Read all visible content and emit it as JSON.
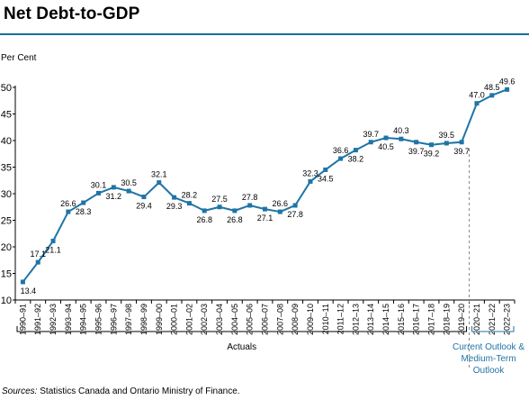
{
  "header": {
    "title": "Net Debt-to-GDP"
  },
  "colors": {
    "accent": "#1a6f9b",
    "line": "#1f74a6",
    "marker": "#1f74a6",
    "text": "#000000",
    "divider": "#888888",
    "outlook_text": "#1f74a6"
  },
  "footer": {
    "sources_label": "Sources:",
    "sources_text": " Statistics Canada and Ontario Ministry of Finance."
  },
  "chart_data": {
    "type": "line",
    "title": "Net Debt-to-GDP",
    "ylabel": "Per Cent",
    "xlabel": "",
    "ylim": [
      10,
      50
    ],
    "yticks": [
      10,
      15,
      20,
      25,
      30,
      35,
      40,
      45,
      50
    ],
    "grid": false,
    "categories": [
      "1990–91",
      "1991–92",
      "1992–93",
      "1993–94",
      "1994–95",
      "1995–96",
      "1996–97",
      "1997–98",
      "1998–99",
      "1999–00",
      "2000–01",
      "2001–02",
      "2002–03",
      "2003–04",
      "2004–05",
      "2005–06",
      "2006–07",
      "2007–08",
      "2008–09",
      "2009–10",
      "2010–11",
      "2011–12",
      "2012–13",
      "2013–14",
      "2014–15",
      "2015–16",
      "2016–17",
      "2017–18",
      "2018–19",
      "2019–20",
      "2020–21",
      "2021–22",
      "2022–23"
    ],
    "series": [
      {
        "values": [
          13.4,
          17.1,
          21.1,
          26.6,
          28.3,
          30.1,
          31.2,
          30.5,
          29.4,
          32.1,
          29.3,
          28.2,
          26.8,
          27.5,
          26.8,
          27.8,
          27.1,
          26.6,
          27.8,
          32.3,
          34.5,
          36.6,
          38.2,
          39.7,
          40.5,
          40.3,
          39.7,
          39.2,
          39.5,
          39.7,
          47.0,
          48.5,
          49.6
        ]
      }
    ],
    "data_labels": [
      "13.4",
      "17.1",
      "21.1",
      "26.6",
      "28.3",
      "30.1",
      "31.2",
      "30.5",
      "29.4",
      "32.1",
      "29.3",
      "28.2",
      "26.8",
      "27.5",
      "26.8",
      "27.8",
      "27.1",
      "26.6",
      "27.8",
      "32.3",
      "34.5",
      "36.6",
      "38.2",
      "39.7",
      "40.5",
      "40.3",
      "39.7",
      "39.2",
      "39.5",
      "39.7",
      "47.0",
      "48.5",
      "49.6"
    ],
    "label_positions": [
      "below",
      "above",
      "below",
      "above",
      "below",
      "above",
      "below",
      "above",
      "below",
      "above",
      "below",
      "above",
      "below",
      "above",
      "below",
      "above",
      "below",
      "above",
      "below",
      "above",
      "below",
      "above",
      "below",
      "above",
      "below",
      "above",
      "below",
      "below",
      "above",
      "below",
      "above",
      "above",
      "above"
    ],
    "groups": [
      {
        "label": "Actuals",
        "from": 0,
        "to": 29
      },
      {
        "label_lines": [
          "Current Outlook &",
          "Medium-Term",
          "Outlook"
        ],
        "from": 30,
        "to": 32
      }
    ]
  }
}
